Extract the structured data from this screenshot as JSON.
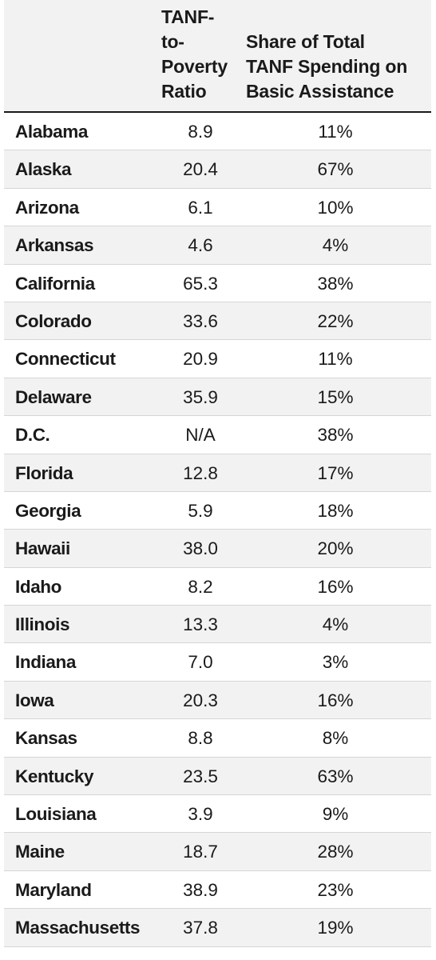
{
  "header": {
    "col1": "",
    "col2_lines": [
      "TANF-",
      "to-",
      "Poverty",
      "Ratio"
    ],
    "col3_lines": [
      "Share of Total",
      "TANF Spending on",
      "Basic Assistance"
    ]
  },
  "rows": [
    {
      "state": "Alabama",
      "ratio": "8.9",
      "share": "11%"
    },
    {
      "state": "Alaska",
      "ratio": "20.4",
      "share": "67%"
    },
    {
      "state": "Arizona",
      "ratio": "6.1",
      "share": "10%"
    },
    {
      "state": "Arkansas",
      "ratio": "4.6",
      "share": "4%"
    },
    {
      "state": "California",
      "ratio": "65.3",
      "share": "38%"
    },
    {
      "state": "Colorado",
      "ratio": "33.6",
      "share": "22%"
    },
    {
      "state": "Connecticut",
      "ratio": "20.9",
      "share": "11%"
    },
    {
      "state": "Delaware",
      "ratio": "35.9",
      "share": "15%"
    },
    {
      "state": "D.C.",
      "ratio": "N/A",
      "share": "38%"
    },
    {
      "state": "Florida",
      "ratio": "12.8",
      "share": "17%"
    },
    {
      "state": "Georgia",
      "ratio": "5.9",
      "share": "18%"
    },
    {
      "state": "Hawaii",
      "ratio": "38.0",
      "share": "20%"
    },
    {
      "state": "Idaho",
      "ratio": "8.2",
      "share": "16%"
    },
    {
      "state": "Illinois",
      "ratio": "13.3",
      "share": "4%"
    },
    {
      "state": "Indiana",
      "ratio": "7.0",
      "share": "3%"
    },
    {
      "state": "Iowa",
      "ratio": "20.3",
      "share": "16%"
    },
    {
      "state": "Kansas",
      "ratio": "8.8",
      "share": "8%"
    },
    {
      "state": "Kentucky",
      "ratio": "23.5",
      "share": "63%"
    },
    {
      "state": "Louisiana",
      "ratio": "3.9",
      "share": "9%"
    },
    {
      "state": "Maine",
      "ratio": "18.7",
      "share": "28%"
    },
    {
      "state": "Maryland",
      "ratio": "38.9",
      "share": "23%"
    },
    {
      "state": "Massachusetts",
      "ratio": "37.8",
      "share": "19%"
    }
  ]
}
